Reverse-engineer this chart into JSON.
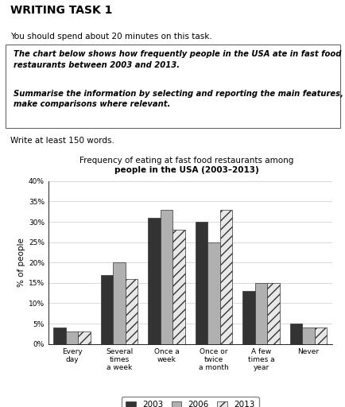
{
  "title_line1": "Frequency of eating at fast food restaurants among",
  "title_line2": "people in the USA (2003–2013)",
  "categories": [
    "Every\nday",
    "Several\ntimes\na week",
    "Once a\nweek",
    "Once or\ntwice\na month",
    "A few\ntimes a\nyear",
    "Never"
  ],
  "series": {
    "2003": [
      4,
      17,
      31,
      30,
      13,
      5
    ],
    "2006": [
      3,
      20,
      33,
      25,
      15,
      4
    ],
    "2013": [
      3,
      16,
      28,
      33,
      15,
      4
    ]
  },
  "bar_color_2003": "#333333",
  "bar_color_2006": "#b0b0b0",
  "bar_color_2013": "#e8e8e8",
  "bar_hatch_2013": "///",
  "bar_edgecolor": "#333333",
  "ylabel": "% of people",
  "ylim": [
    0,
    40
  ],
  "yticks": [
    0,
    5,
    10,
    15,
    20,
    25,
    30,
    35,
    40
  ],
  "ytick_labels": [
    "0%",
    "5%",
    "10%",
    "15%",
    "20%",
    "25%",
    "30%",
    "35%",
    "40%"
  ],
  "legend_labels": [
    "2003",
    "2006",
    "2013"
  ],
  "writing_task_title": "WRITING TASK 1",
  "subtitle1": "You should spend about 20 minutes on this task.",
  "box_text1": "The chart below shows how frequently people in the USA ate in fast food\nrestaurants between 2003 and 2013.",
  "box_text2": "Summarise the information by selecting and reporting the main features, and\nmake comparisons where relevant.",
  "write_note": "Write at least 150 words.",
  "bg_color": "#ffffff",
  "grid_color": "#cccccc"
}
